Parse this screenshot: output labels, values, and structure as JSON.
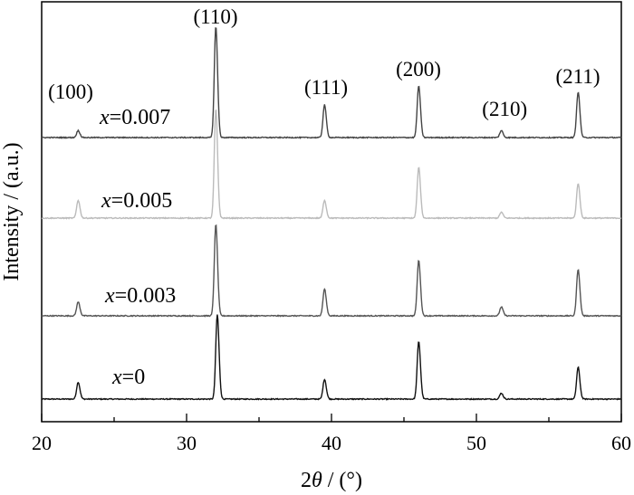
{
  "chart_data": {
    "type": "line",
    "xlabel": "2θ / (°)",
    "ylabel": "Intensity / (a.u.)",
    "xlim": [
      20,
      60
    ],
    "x_ticks": [
      "20",
      "30",
      "40",
      "50",
      "60"
    ],
    "y_ticks_labeled": false,
    "grid": false,
    "legend": "none",
    "peak_labels": [
      {
        "label": "(100)",
        "x": 22.5
      },
      {
        "label": "(110)",
        "x": 32.0
      },
      {
        "label": "(111)",
        "x": 39.5
      },
      {
        "label": "(200)",
        "x": 46.0
      },
      {
        "label": "(210)",
        "x": 51.7
      },
      {
        "label": "(211)",
        "x": 57.0
      }
    ],
    "series": [
      {
        "name": "x=0",
        "name_prefix": "x",
        "name_suffix": "=0",
        "color": "#111111",
        "peaks": [
          [
            22.5,
            0.17
          ],
          [
            32.1,
            0.85
          ],
          [
            39.5,
            0.2
          ],
          [
            46.0,
            0.58
          ],
          [
            51.7,
            0.06
          ],
          [
            57.0,
            0.32
          ]
        ]
      },
      {
        "name": "x=0.003",
        "name_prefix": "x",
        "name_suffix": "=0.003",
        "color": "#555555",
        "peaks": [
          [
            22.5,
            0.14
          ],
          [
            32.0,
            0.92
          ],
          [
            39.5,
            0.27
          ],
          [
            46.0,
            0.56
          ],
          [
            51.7,
            0.09
          ],
          [
            57.0,
            0.47
          ]
        ]
      },
      {
        "name": "x=0.005",
        "name_prefix": "x",
        "name_suffix": "=0.005",
        "color": "#bbbbbb",
        "peaks": [
          [
            22.5,
            0.18
          ],
          [
            32.0,
            1.1
          ],
          [
            39.5,
            0.18
          ],
          [
            46.0,
            0.51
          ],
          [
            51.7,
            0.06
          ],
          [
            57.0,
            0.35
          ]
        ]
      },
      {
        "name": "x=0.007",
        "name_prefix": "x",
        "name_suffix": "=0.007",
        "color": "#444444",
        "peaks": [
          [
            22.5,
            0.07
          ],
          [
            32.0,
            1.12
          ],
          [
            39.5,
            0.33
          ],
          [
            46.0,
            0.52
          ],
          [
            51.7,
            0.07
          ],
          [
            57.0,
            0.46
          ]
        ]
      }
    ]
  }
}
